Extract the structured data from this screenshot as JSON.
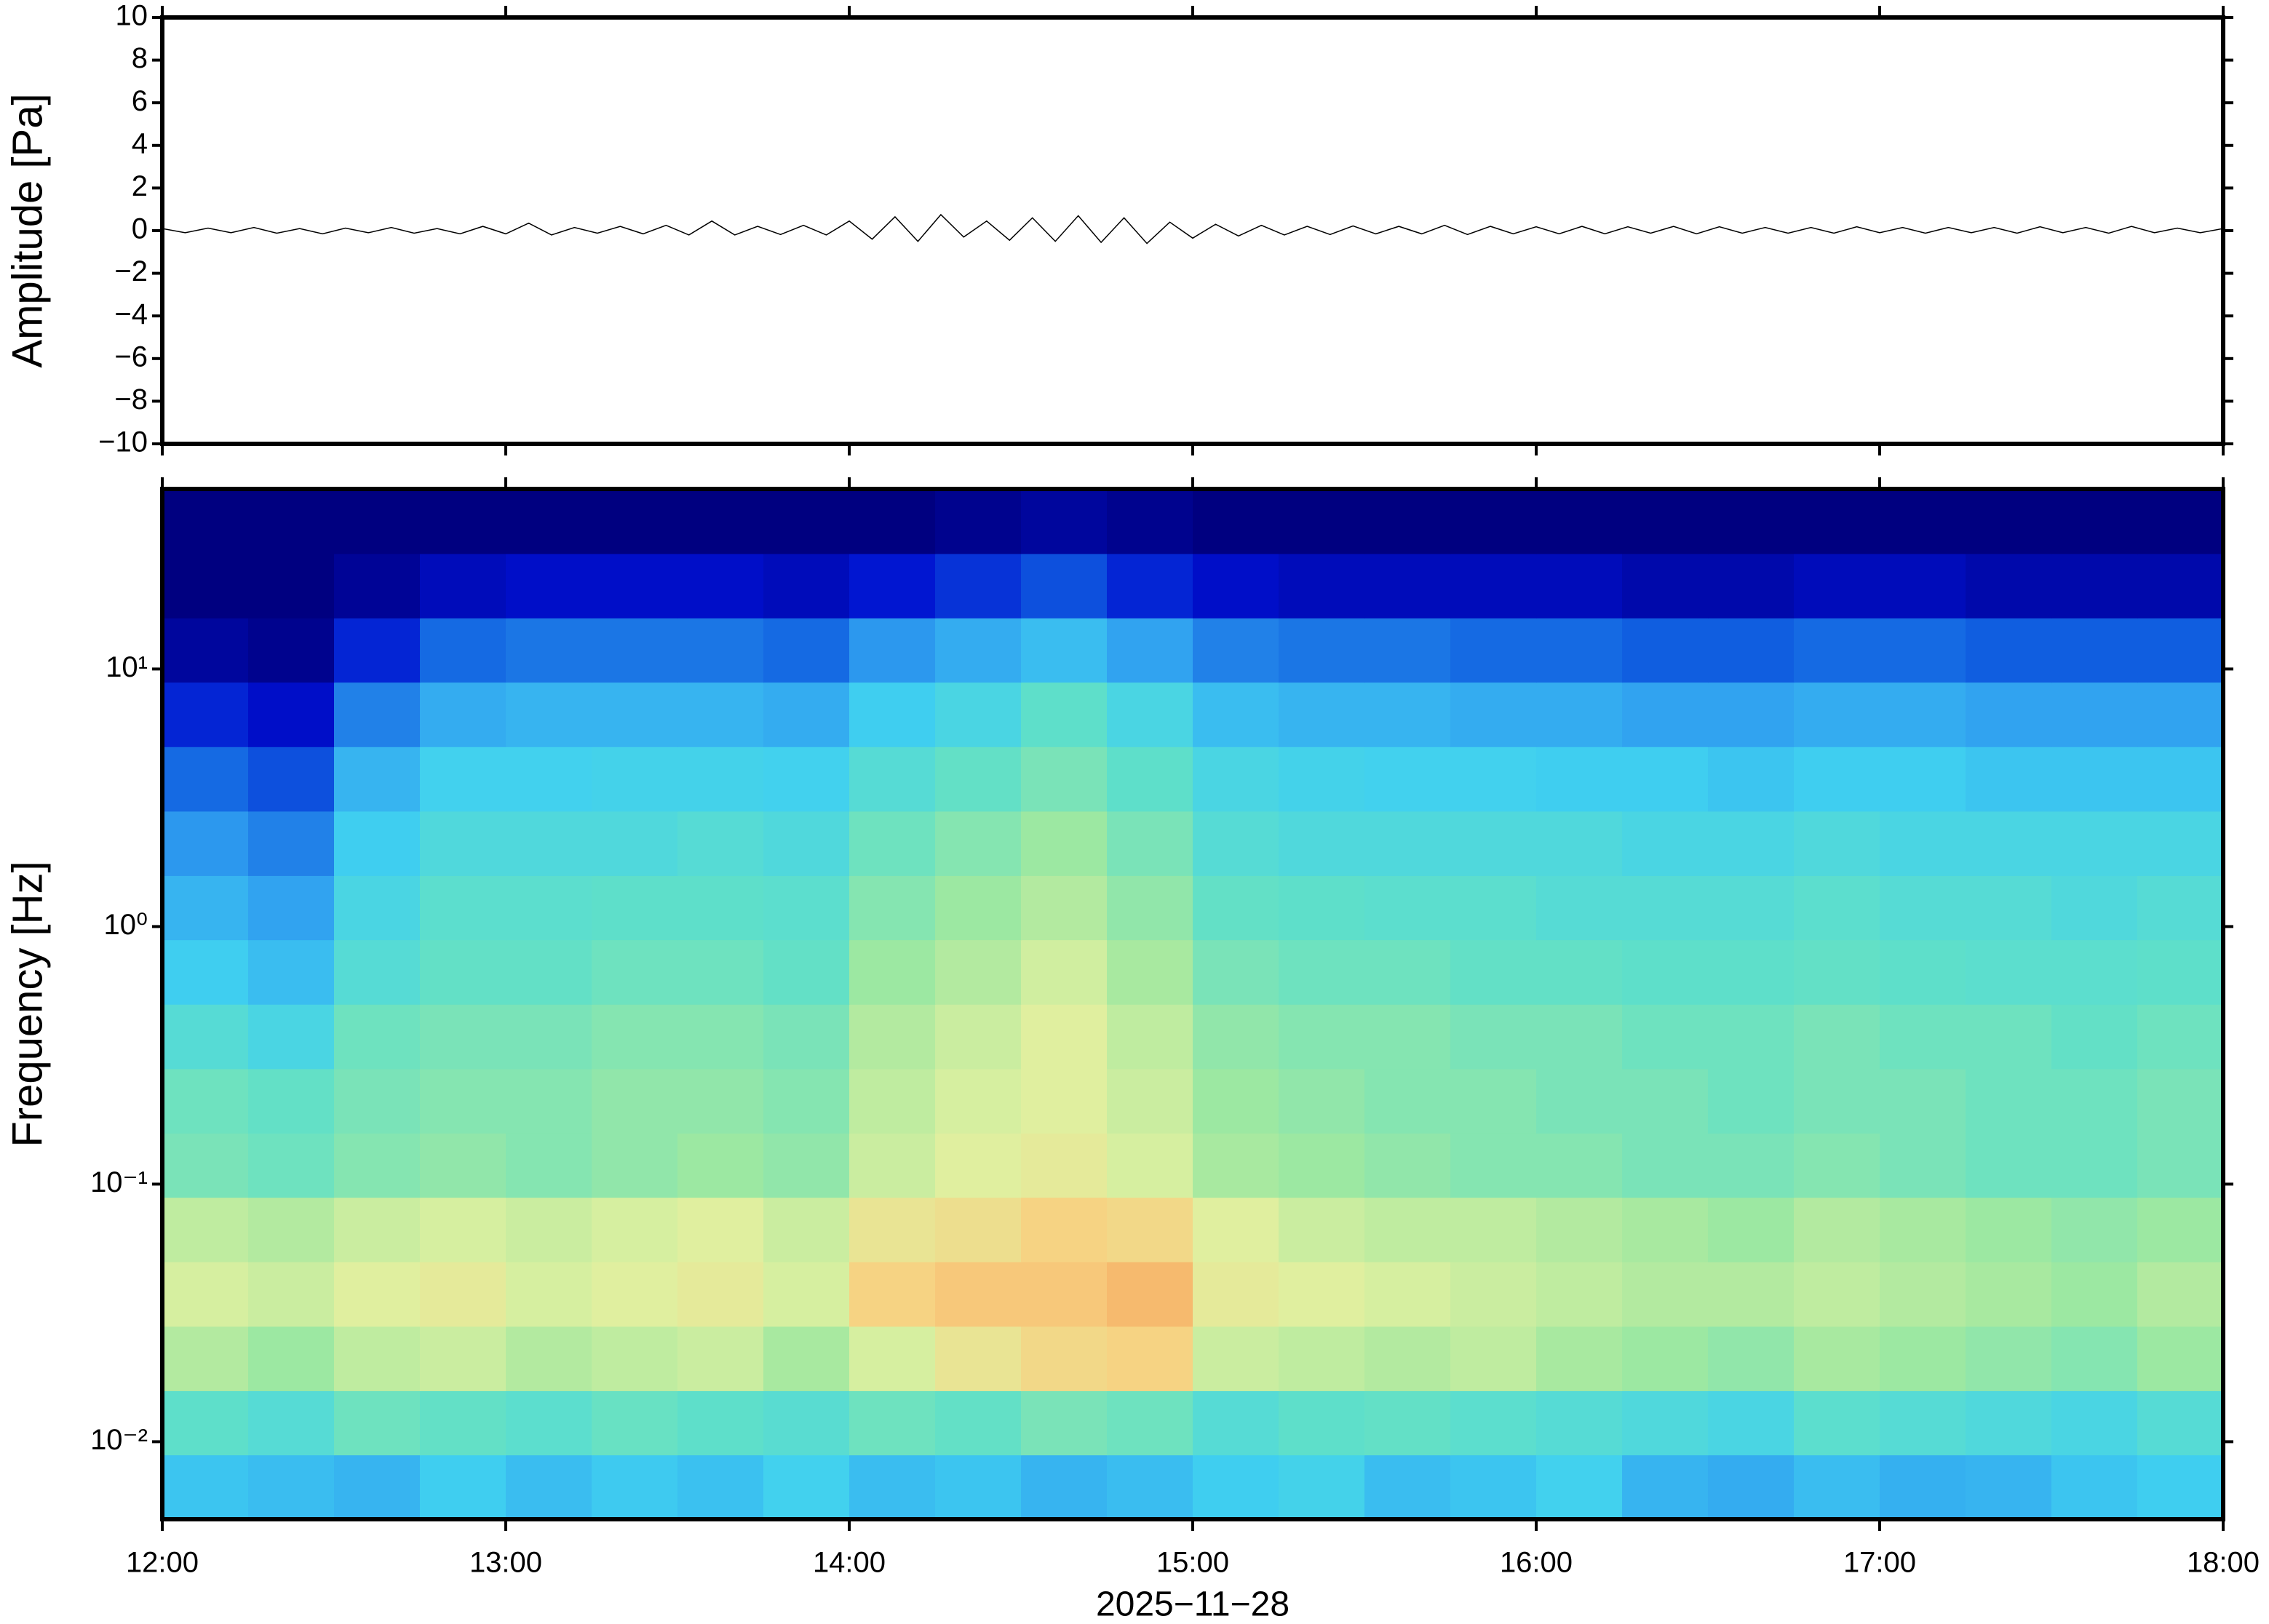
{
  "chart_data": [
    {
      "type": "line",
      "y_label": "Amplitude [Pa]",
      "color": "#000000",
      "xlim": [
        0,
        360
      ],
      "ylim": [
        -10,
        10
      ],
      "yticks": [
        {
          "value": -10,
          "label": "−10"
        },
        {
          "value": -8,
          "label": "−8"
        },
        {
          "value": -6,
          "label": "−6"
        },
        {
          "value": -4,
          "label": "−4"
        },
        {
          "value": -2,
          "label": "−2"
        },
        0,
        2,
        4,
        6,
        8,
        10
      ],
      "x": [
        0,
        4,
        8,
        12,
        16,
        20,
        24,
        28,
        32,
        36,
        40,
        44,
        48,
        52,
        56,
        60,
        64,
        68,
        72,
        76,
        80,
        84,
        88,
        92,
        96,
        100,
        104,
        108,
        112,
        116,
        120,
        124,
        128,
        132,
        136,
        140,
        144,
        148,
        152,
        156,
        160,
        164,
        168,
        172,
        176,
        180,
        184,
        188,
        192,
        196,
        200,
        204,
        208,
        212,
        216,
        220,
        224,
        228,
        232,
        236,
        240,
        244,
        248,
        252,
        256,
        260,
        264,
        268,
        272,
        276,
        280,
        284,
        288,
        292,
        296,
        300,
        304,
        308,
        312,
        316,
        320,
        324,
        328,
        332,
        336,
        340,
        344,
        348,
        352,
        356,
        360
      ],
      "values": [
        0.1,
        -0.1,
        0.12,
        -0.1,
        0.15,
        -0.12,
        0.1,
        -0.15,
        0.12,
        -0.1,
        0.15,
        -0.12,
        0.1,
        -0.15,
        0.2,
        -0.15,
        0.35,
        -0.2,
        0.15,
        -0.12,
        0.2,
        -0.15,
        0.25,
        -0.2,
        0.45,
        -0.2,
        0.2,
        -0.18,
        0.25,
        -0.2,
        0.45,
        -0.4,
        0.65,
        -0.5,
        0.75,
        -0.3,
        0.45,
        -0.45,
        0.6,
        -0.5,
        0.7,
        -0.55,
        0.6,
        -0.6,
        0.4,
        -0.35,
        0.3,
        -0.25,
        0.25,
        -0.2,
        0.2,
        -0.18,
        0.22,
        -0.15,
        0.2,
        -0.15,
        0.25,
        -0.18,
        0.2,
        -0.15,
        0.18,
        -0.15,
        0.2,
        -0.15,
        0.18,
        -0.12,
        0.2,
        -0.15,
        0.18,
        -0.12,
        0.15,
        -0.12,
        0.15,
        -0.12,
        0.18,
        -0.1,
        0.15,
        -0.12,
        0.15,
        -0.1,
        0.15,
        -0.12,
        0.18,
        -0.1,
        0.15,
        -0.12,
        0.2,
        -0.1,
        0.12,
        -0.1,
        0.1
      ]
    },
    {
      "type": "heatmap",
      "y_label": "Frequency [Hz]",
      "x_label": "2025−11−28",
      "log_y": true,
      "xlim": [
        0,
        360
      ],
      "ylim": [
        0.005,
        50
      ],
      "xticks": [
        {
          "value": 0,
          "label": "12:00"
        },
        {
          "value": 60,
          "label": "13:00"
        },
        {
          "value": 120,
          "label": "14:00"
        },
        {
          "value": 180,
          "label": "15:00"
        },
        {
          "value": 240,
          "label": "16:00"
        },
        {
          "value": 300,
          "label": "17:00"
        },
        {
          "value": 360,
          "label": "18:00"
        }
      ],
      "yticks": [
        {
          "value": 0.01,
          "label": "10⁻²"
        },
        {
          "value": 0.1,
          "label": "10⁻¹"
        },
        {
          "value": 1,
          "label": "10⁰"
        },
        {
          "value": 10,
          "label": "10¹"
        }
      ],
      "colormap": [
        "#000080",
        "#0010d0",
        "#1060e0",
        "#30a0f0",
        "#40d0f0",
        "#60e0c8",
        "#a0e8a0",
        "#e0f0a0",
        "#f8d080",
        "#f08040"
      ],
      "zlim": [
        0,
        100
      ],
      "xedges": [
        0,
        15,
        30,
        45,
        60,
        75,
        90,
        105,
        120,
        135,
        150,
        165,
        180,
        195,
        210,
        225,
        240,
        255,
        270,
        285,
        300,
        315,
        330,
        345,
        360
      ],
      "yedges": [
        0.005,
        0.0089,
        0.0158,
        0.0281,
        0.05,
        0.089,
        0.158,
        0.281,
        0.5,
        0.89,
        1.58,
        2.81,
        5,
        8.9,
        15.8,
        28.1,
        50
      ],
      "z": [
        [
          42,
          40,
          38,
          44,
          40,
          43,
          41,
          45,
          40,
          42,
          38,
          40,
          44,
          46,
          40,
          42,
          45,
          38,
          36,
          40,
          37,
          38,
          42,
          44
        ],
        [
          55,
          52,
          58,
          56,
          54,
          57,
          55,
          53,
          58,
          56,
          60,
          58,
          52,
          55,
          56,
          54,
          52,
          50,
          48,
          54,
          52,
          50,
          48,
          52
        ],
        [
          70,
          66,
          72,
          74,
          70,
          72,
          74,
          68,
          76,
          82,
          86,
          88,
          74,
          72,
          70,
          72,
          68,
          66,
          64,
          68,
          66,
          64,
          62,
          66
        ],
        [
          76,
          74,
          78,
          80,
          76,
          78,
          80,
          76,
          88,
          90,
          90,
          92,
          80,
          78,
          76,
          74,
          72,
          70,
          70,
          72,
          70,
          68,
          66,
          70
        ],
        [
          72,
          70,
          74,
          76,
          74,
          76,
          78,
          74,
          82,
          84,
          88,
          86,
          78,
          74,
          72,
          72,
          70,
          68,
          66,
          70,
          68,
          66,
          64,
          66
        ],
        [
          60,
          58,
          62,
          64,
          62,
          64,
          66,
          64,
          74,
          78,
          80,
          76,
          68,
          66,
          64,
          62,
          62,
          60,
          60,
          62,
          60,
          58,
          58,
          60
        ],
        [
          58,
          56,
          60,
          62,
          62,
          64,
          64,
          62,
          72,
          76,
          78,
          74,
          66,
          64,
          62,
          62,
          60,
          60,
          58,
          60,
          60,
          58,
          58,
          60
        ],
        [
          52,
          48,
          58,
          60,
          60,
          62,
          62,
          60,
          70,
          74,
          78,
          72,
          64,
          62,
          62,
          60,
          60,
          58,
          58,
          60,
          58,
          58,
          56,
          58
        ],
        [
          44,
          40,
          52,
          56,
          56,
          58,
          58,
          56,
          66,
          70,
          75,
          68,
          60,
          58,
          58,
          56,
          56,
          55,
          55,
          56,
          55,
          54,
          54,
          55
        ],
        [
          38,
          34,
          48,
          54,
          54,
          55,
          55,
          54,
          62,
          66,
          70,
          64,
          56,
          55,
          54,
          54,
          52,
          52,
          52,
          54,
          52,
          52,
          50,
          52
        ],
        [
          32,
          28,
          44,
          50,
          50,
          50,
          52,
          50,
          58,
          62,
          66,
          60,
          52,
          50,
          50,
          50,
          50,
          48,
          48,
          50,
          48,
          48,
          48,
          48
        ],
        [
          24,
          20,
          38,
          45,
          45,
          46,
          46,
          45,
          52,
          56,
          60,
          55,
          48,
          46,
          45,
          45,
          44,
          44,
          42,
          44,
          44,
          42,
          42,
          42
        ],
        [
          14,
          10,
          28,
          36,
          38,
          38,
          38,
          36,
          44,
          48,
          55,
          48,
          40,
          38,
          38,
          36,
          36,
          34,
          34,
          36,
          36,
          34,
          34,
          34
        ],
        [
          4,
          2,
          14,
          24,
          26,
          26,
          26,
          24,
          32,
          36,
          40,
          34,
          28,
          26,
          26,
          24,
          24,
          22,
          22,
          24,
          24,
          22,
          22,
          22
        ],
        [
          0,
          0,
          3,
          8,
          10,
          10,
          10,
          8,
          12,
          16,
          20,
          14,
          10,
          8,
          8,
          8,
          8,
          6,
          6,
          8,
          8,
          6,
          6,
          6
        ],
        [
          0,
          0,
          0,
          0,
          0,
          0,
          0,
          0,
          0,
          2,
          4,
          2,
          0,
          0,
          0,
          0,
          0,
          0,
          0,
          0,
          0,
          0,
          0,
          0
        ]
      ]
    }
  ]
}
